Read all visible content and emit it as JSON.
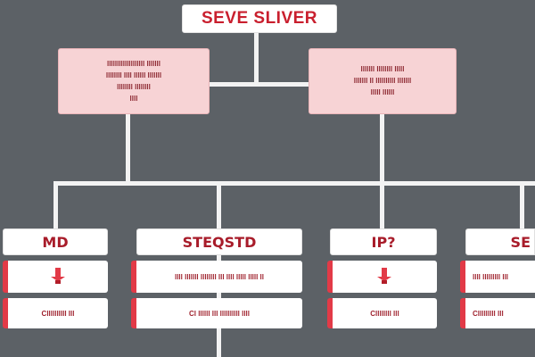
{
  "root": {
    "title": "SEVE SLIVER"
  },
  "descriptions": [
    {
      "lines": [
        "lllllllllllllllllll lllllll",
        "llllllll llll llllll lllllll",
        "llllllll llllllll",
        "llll"
      ]
    },
    {
      "lines": [
        "lllllll llllllll lllll",
        "lllllll ll llllllllll lllllll",
        "lllll llllll"
      ]
    }
  ],
  "columns": [
    {
      "title": "MD",
      "items": [
        "",
        "ClllllllIII Ill"
      ]
    },
    {
      "title": "STEQSTD",
      "items": [
        "llll lllllll llllllll lll llll lllll lllll ll",
        "Cl llllll lll llllllllll llll"
      ]
    },
    {
      "title": "IP?",
      "items": [
        "",
        "Cllllllll lll"
      ]
    },
    {
      "title": "SE",
      "items": [
        "llll lllllllll lll",
        "Clllllllll lll"
      ]
    }
  ],
  "colors": {
    "accent": "#e23a47",
    "background": "#5c6166",
    "box_fill": "#f7d3d5"
  },
  "icons": [
    "pin-icon",
    "pin-icon"
  ]
}
